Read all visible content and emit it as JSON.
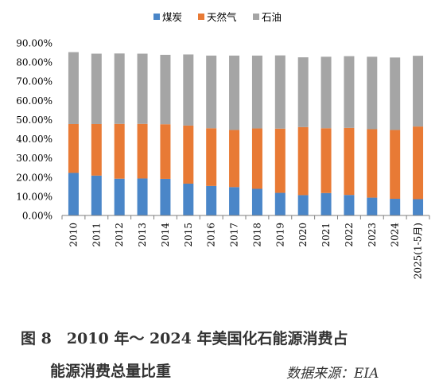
{
  "chart_data": {
    "type": "bar",
    "stacked": true,
    "categories": [
      "2010",
      "2011",
      "2012",
      "2013",
      "2014",
      "2015",
      "2016",
      "2017",
      "2018",
      "2019",
      "2020",
      "2021",
      "2022",
      "2023",
      "2024",
      "2025(1-5月)"
    ],
    "series": [
      {
        "name": "煤炭",
        "color": "#4A86C8",
        "values": [
          22.2,
          20.8,
          19.2,
          19.3,
          19.1,
          16.6,
          15.4,
          14.8,
          13.9,
          11.8,
          10.6,
          11.7,
          10.7,
          9.3,
          8.7,
          8.5
        ]
      },
      {
        "name": "天然气",
        "color": "#E87A35",
        "values": [
          25.5,
          26.9,
          28.6,
          28.5,
          28.5,
          30.3,
          30.1,
          29.8,
          31.5,
          33.5,
          35.5,
          33.8,
          35.0,
          35.7,
          35.9,
          37.9
        ]
      },
      {
        "name": "石油",
        "color": "#A5A5A5",
        "values": [
          37.5,
          36.7,
          36.7,
          36.6,
          36.2,
          37.1,
          37.9,
          38.8,
          38.0,
          38.2,
          36.4,
          37.3,
          37.4,
          37.8,
          37.8,
          36.9
        ]
      }
    ],
    "yticks": [
      "0.00%",
      "10.00%",
      "20.00%",
      "30.00%",
      "40.00%",
      "50.00%",
      "60.00%",
      "70.00%",
      "80.00%",
      "90.00%"
    ],
    "ylim": [
      0,
      90
    ],
    "legend_position": "top",
    "grid": false
  },
  "caption": {
    "line1": "图 8　2010 年～ 2024 年美国化石能源消费占",
    "line2": "能源消费总量比重",
    "source": "数据来源：EIA"
  }
}
